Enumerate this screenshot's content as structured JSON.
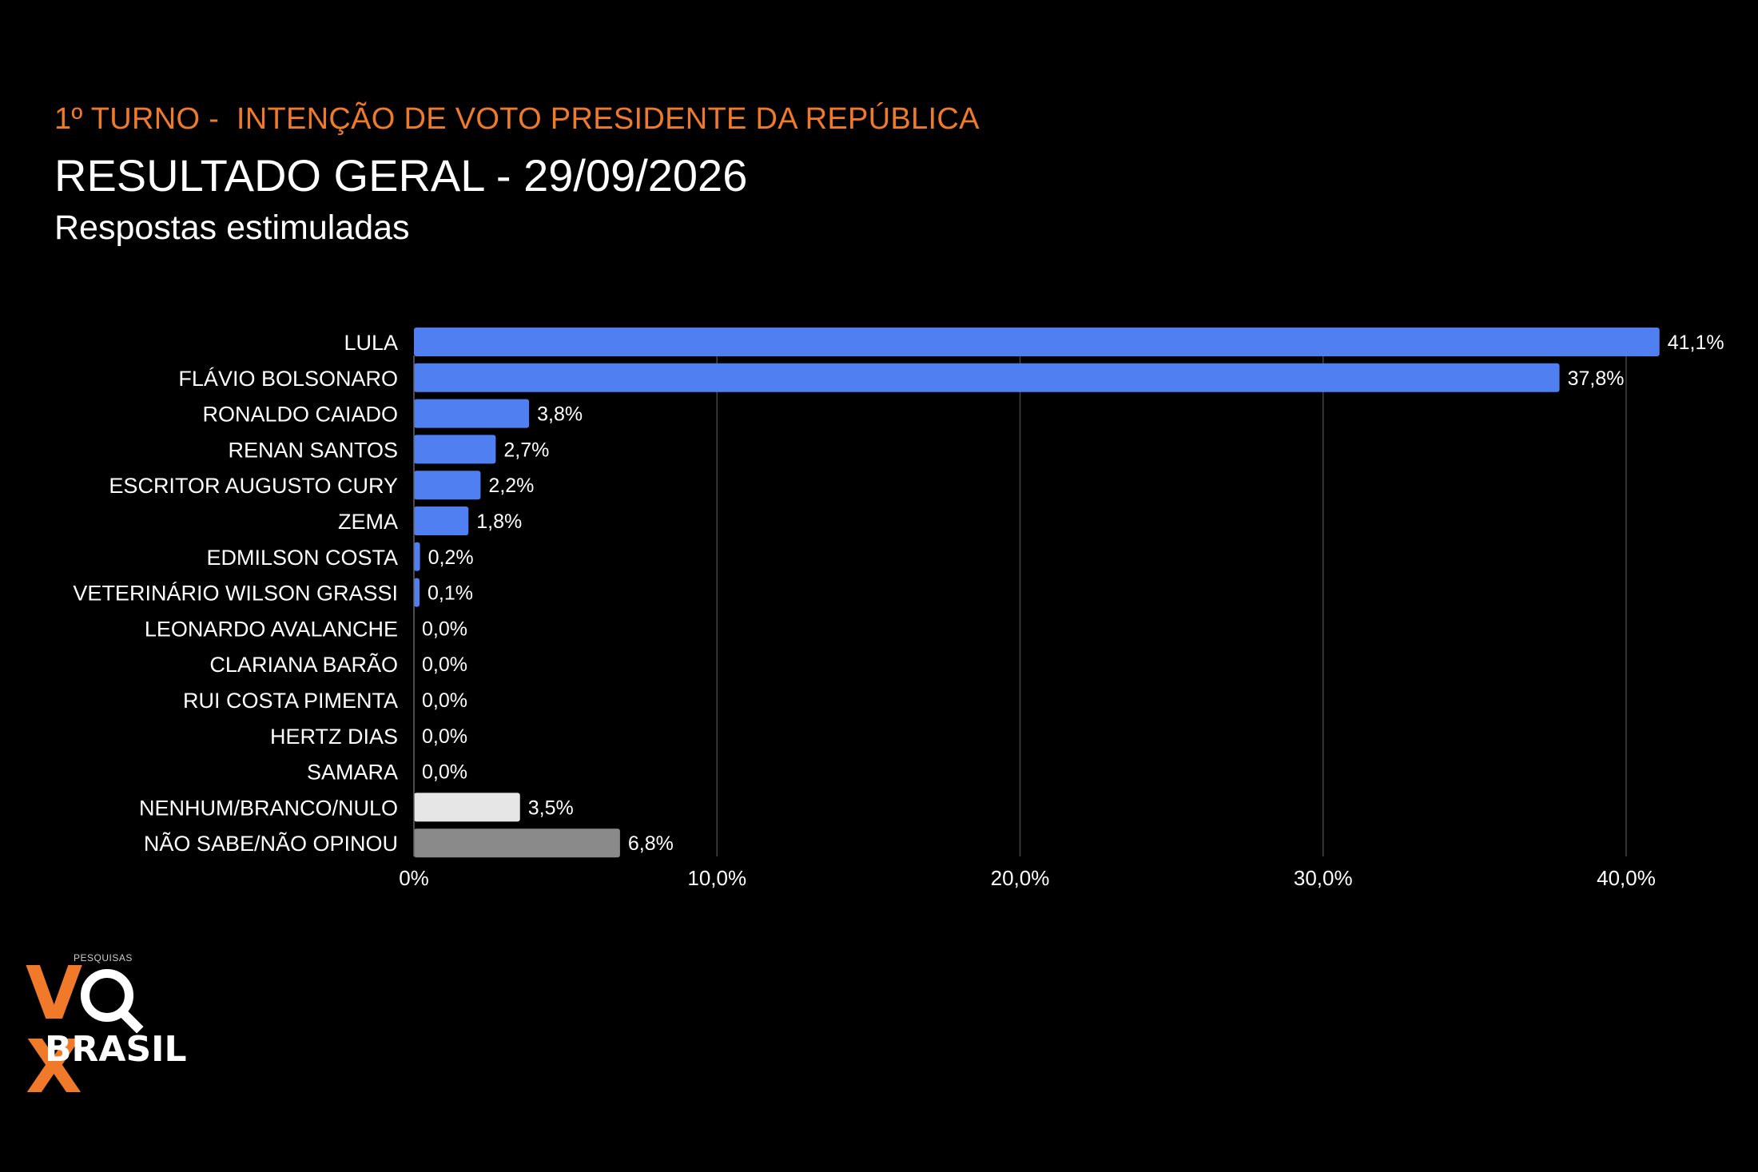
{
  "header": {
    "supertitle": "1º TURNO -  INTENÇÃO DE VOTO PRESIDENTE DA REPÚBLICA",
    "title": "RESULTADO GERAL - 29/09/2026",
    "subtitle": "Respostas estimuladas"
  },
  "logo": {
    "small_text": "PESQUISAS",
    "brand_left": "V",
    "brand_right": "X",
    "brand_bottom": "BRASIL"
  },
  "colors": {
    "background": "#000000",
    "accent": "#f07a2a",
    "candidate_bar": "#4f7ff0",
    "blank_bar": "#e6e6e6",
    "undecided_bar": "#8a8a8a",
    "gridline": "#444444"
  },
  "chart_data": {
    "type": "bar",
    "orientation": "horizontal",
    "categories": [
      "LULA",
      "FLÁVIO BOLSONARO",
      "RONALDO CAIADO",
      "RENAN SANTOS",
      "ESCRITOR AUGUSTO CURY",
      "ZEMA",
      "EDMILSON COSTA",
      "VETERINÁRIO WILSON GRASSI",
      "LEONARDO AVALANCHE",
      "CLARIANA BARÃO",
      "RUI COSTA PIMENTA",
      "HERTZ DIAS",
      "SAMARA",
      "NENHUM/BRANCO/NULO",
      "NÃO SABE/NÃO OPINOU"
    ],
    "values": [
      41.1,
      37.8,
      3.8,
      2.7,
      2.2,
      1.8,
      0.2,
      0.1,
      0.0,
      0.0,
      0.0,
      0.0,
      0.0,
      3.5,
      6.8
    ],
    "value_labels": [
      "41,1%",
      "37,8%",
      "3,8%",
      "2,7%",
      "2,2%",
      "1,8%",
      "0,2%",
      "0,1%",
      "0,0%",
      "0,0%",
      "0,0%",
      "0,0%",
      "0,0%",
      "3,5%",
      "6,8%"
    ],
    "bar_colors": [
      "#4f7ff0",
      "#4f7ff0",
      "#4f7ff0",
      "#4f7ff0",
      "#4f7ff0",
      "#4f7ff0",
      "#4f7ff0",
      "#4f7ff0",
      "#4f7ff0",
      "#4f7ff0",
      "#4f7ff0",
      "#4f7ff0",
      "#4f7ff0",
      "#e6e6e6",
      "#8a8a8a"
    ],
    "xlim": [
      0,
      42
    ],
    "x_ticks": [
      0,
      10,
      20,
      30,
      40
    ],
    "x_tick_labels": [
      "0%",
      "10,0%",
      "20,0%",
      "30,0%",
      "40,0%"
    ],
    "grid": true,
    "legend": "none",
    "title": "",
    "xlabel": "",
    "ylabel": ""
  }
}
